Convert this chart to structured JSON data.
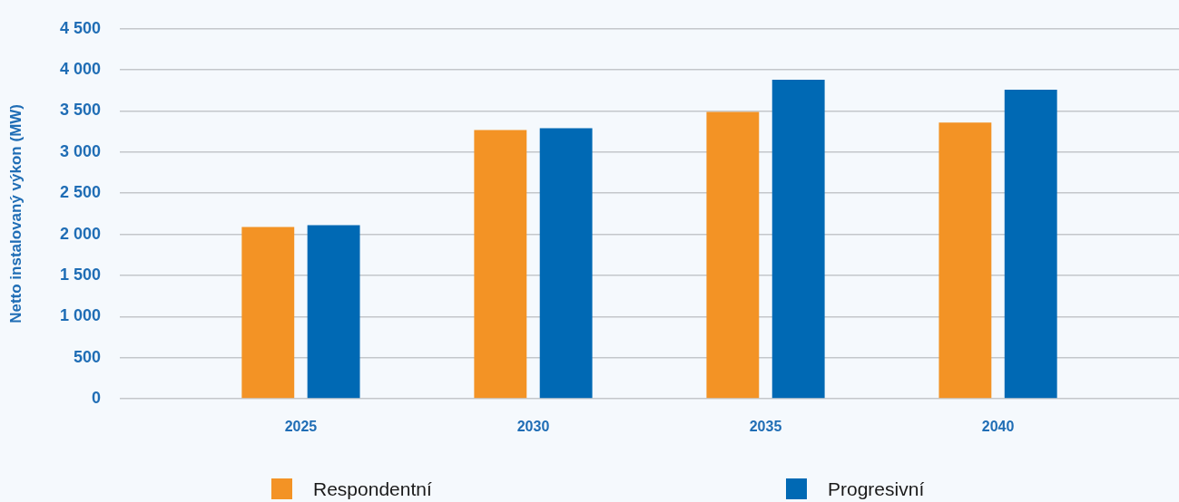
{
  "chart_data": {
    "type": "bar",
    "ylabel": "Netto instalovaný výkon (MW)",
    "categories": [
      "2025",
      "2030",
      "2035",
      "2040"
    ],
    "series": [
      {
        "name": "Respondentní",
        "color": "#f39325",
        "values": [
          2090,
          3270,
          3490,
          3360
        ]
      },
      {
        "name": "Progresivní",
        "color": "#0069b4",
        "values": [
          2110,
          3290,
          3880,
          3760
        ]
      }
    ],
    "ylim": [
      0,
      4500
    ],
    "yticks": [
      0,
      500,
      {
        "value": 1000,
        "label": "1 000"
      },
      {
        "value": 1500,
        "label": "1 500"
      },
      {
        "value": 2000,
        "label": "2 000"
      },
      {
        "value": 2500,
        "label": "2 500"
      },
      {
        "value": 3000,
        "label": "3 000"
      },
      {
        "value": 3500,
        "label": "3 500"
      },
      {
        "value": 4000,
        "label": "4 000"
      },
      {
        "value": 4500,
        "label": "4 500"
      }
    ],
    "grid": "y",
    "legend": "bottom"
  }
}
